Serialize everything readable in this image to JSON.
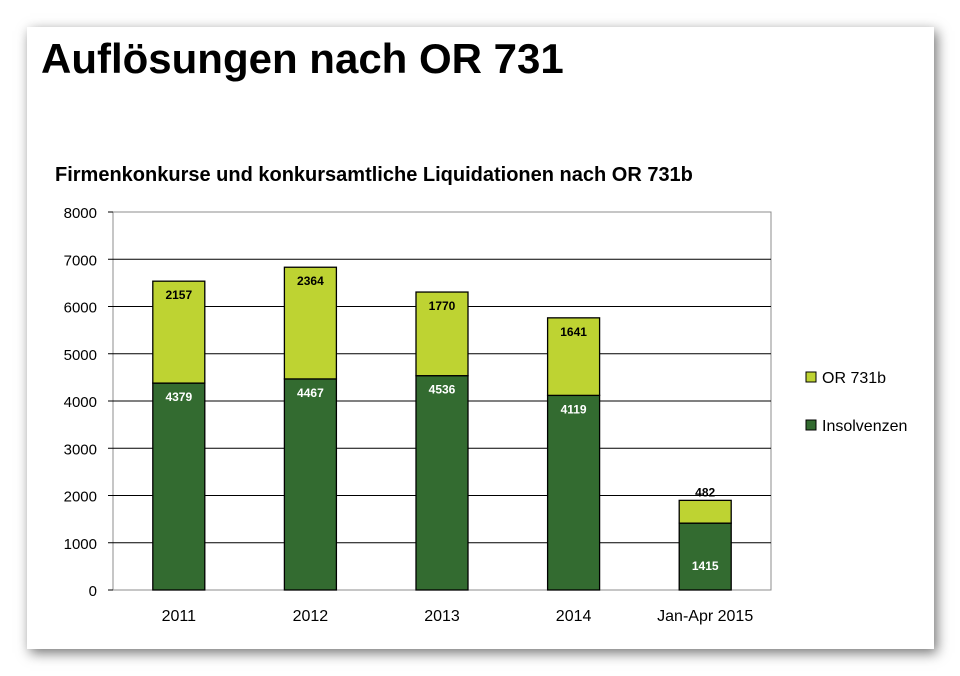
{
  "slide": {
    "title": "Auflösungen nach OR 731"
  },
  "chart_data": {
    "type": "bar",
    "stacked": true,
    "title": "Firmenkonkurse und konkursamtliche Liquidationen nach OR 731b",
    "categories": [
      "2011",
      "2012",
      "2013",
      "2014",
      "Jan-Apr 2015"
    ],
    "series": [
      {
        "name": "Insolvenzen",
        "values": [
          4379,
          4467,
          4536,
          4119,
          1415
        ],
        "color": "#336b30",
        "label_color": "#ffffff"
      },
      {
        "name": "OR 731b",
        "values": [
          2157,
          2364,
          1770,
          1641,
          482
        ],
        "color": "#bed332",
        "label_color": "#000000"
      }
    ],
    "ylim": [
      0,
      8000
    ],
    "yticks": [
      0,
      1000,
      2000,
      3000,
      4000,
      5000,
      6000,
      7000,
      8000
    ],
    "grid": true,
    "legend": "right",
    "xlabel": "",
    "ylabel": ""
  }
}
